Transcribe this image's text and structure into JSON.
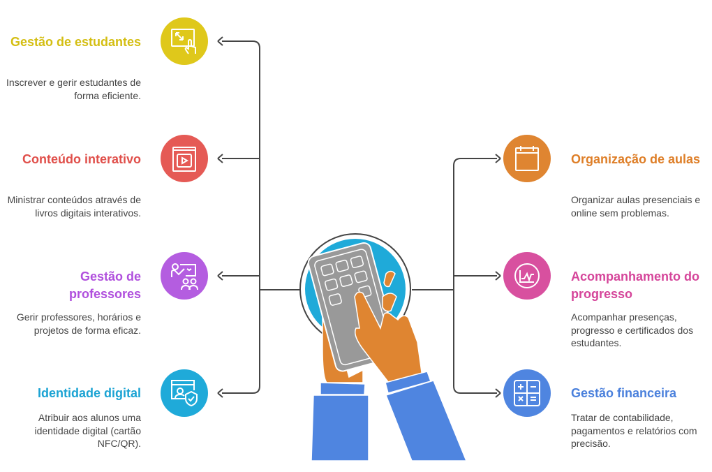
{
  "left_items": [
    {
      "title": "Gestão de estudantes",
      "description": "Inscrever e gerir estudantes de forma eficiente.",
      "color": "#dfc81b",
      "icon": "resize-touch-icon"
    },
    {
      "title": "Conteúdo interativo",
      "description": "Ministrar conteúdos através de livros digitais interativos.",
      "color": "#e55a55",
      "icon": "book-video-icon"
    },
    {
      "title": "Gestão de professores",
      "description": "Gerir professores, horários e projetos de forma eficaz.",
      "color": "#b45de0",
      "icon": "teacher-presentation-icon"
    },
    {
      "title": "Identidade digital",
      "description": "Atribuir aos alunos uma identidade digital (cartão NFC/QR).",
      "color": "#1faad9",
      "icon": "user-shield-icon"
    }
  ],
  "right_items": [
    {
      "title": "Organização de aulas",
      "description": "Organizar aulas presenciais e online sem problemas.",
      "color": "#df8531",
      "icon": "calendar-icon"
    },
    {
      "title": "Acompanhamento do progresso",
      "description": "Acompanhar presenças, progresso e certificados dos estudantes.",
      "color": "#d8509f",
      "icon": "chart-line-icon"
    },
    {
      "title": "Gestão financeira",
      "description": "Tratar de contabilidade, pagamentos e relatórios com precisão.",
      "color": "#4f85e0",
      "icon": "calculator-icon"
    }
  ],
  "center": {
    "icon": "hands-calculator-illustration"
  }
}
